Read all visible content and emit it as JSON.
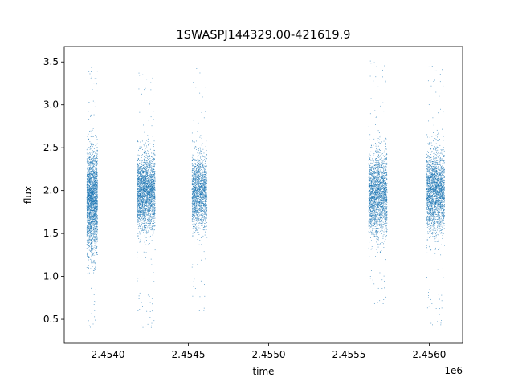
{
  "chart_data": {
    "type": "scatter",
    "title": "1SWASPJ144329.00-421619.9",
    "xlabel": "time",
    "ylabel": "flux",
    "x_offset_label": "1e6",
    "xlim": [
      2453727,
      2456208
    ],
    "ylim": [
      0.22,
      3.68
    ],
    "xticks": [
      2454000,
      2454500,
      2455000,
      2455500,
      2456000
    ],
    "xtick_labels": [
      "2.4540",
      "2.4545",
      "2.4550",
      "2.4555",
      "2.4560"
    ],
    "yticks": [
      0.5,
      1.0,
      1.5,
      2.0,
      2.5,
      3.0,
      3.5
    ],
    "ytick_labels": [
      "0.5",
      "1.0",
      "1.5",
      "2.0",
      "2.5",
      "3.0",
      "3.5"
    ],
    "grid": false,
    "marker_color": "#1f77b4",
    "series": [
      {
        "seasons": [
          {
            "x_range": [
              2453868,
              2453934
            ],
            "center": 1.88,
            "spread": 0.3,
            "ymin": 0.37,
            "ymax": 3.52,
            "points": 2400
          },
          {
            "x_range": [
              2454182,
              2454293
            ],
            "center": 1.98,
            "spread": 0.22,
            "ymin": 0.37,
            "ymax": 3.38,
            "points": 2400
          },
          {
            "x_range": [
              2454523,
              2454616
            ],
            "center": 1.98,
            "spread": 0.22,
            "ymin": 0.55,
            "ymax": 3.45,
            "points": 1600
          },
          {
            "x_range": [
              2455623,
              2455738
            ],
            "center": 1.95,
            "spread": 0.24,
            "ymin": 0.65,
            "ymax": 3.52,
            "points": 2200
          },
          {
            "x_range": [
              2455985,
              2456096
            ],
            "center": 1.98,
            "spread": 0.24,
            "ymin": 0.4,
            "ymax": 3.48,
            "points": 2200
          }
        ]
      }
    ]
  }
}
